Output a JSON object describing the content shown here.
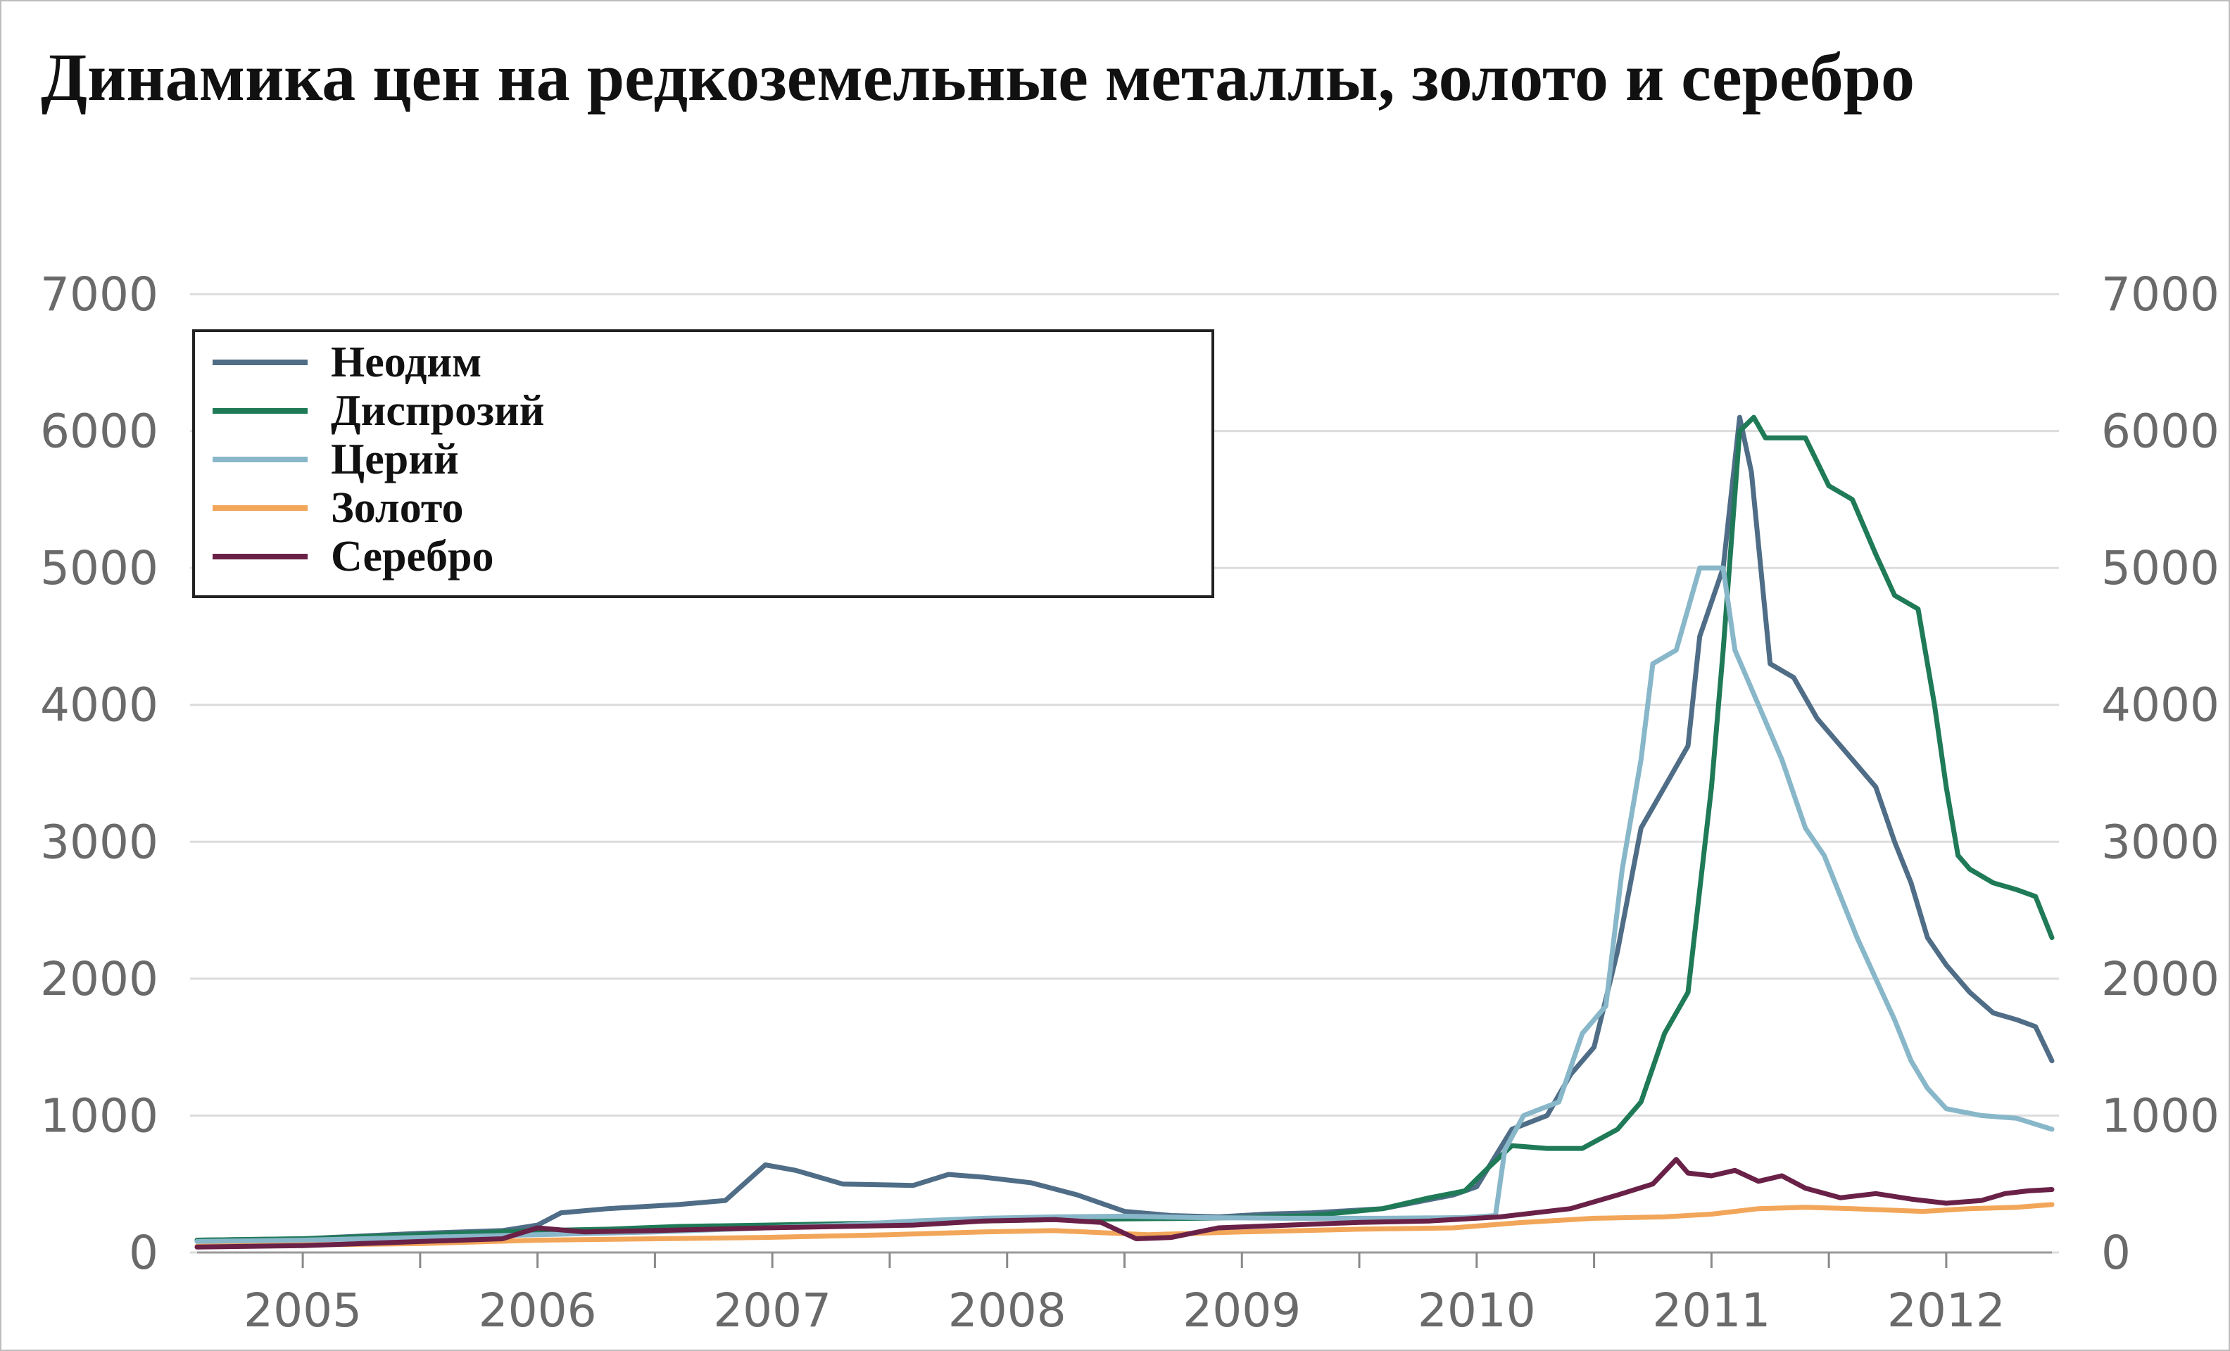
{
  "chart_data": {
    "type": "line",
    "title": "Динамика цен на редкоземельные металлы, золото и серебро",
    "xlabel": "",
    "ylabel": "",
    "xlim": [
      2004.55,
      2012.45
    ],
    "ylim": [
      0,
      7000
    ],
    "grid": true,
    "legend_position": "top-left",
    "x_ticks": [
      2005,
      2006,
      2007,
      2008,
      2009,
      2010,
      2011,
      2012
    ],
    "y_ticks": [
      0,
      1000,
      2000,
      3000,
      4000,
      5000,
      6000,
      7000
    ],
    "series": [
      {
        "name": "Неодим",
        "color": "#4f6d86",
        "points": [
          [
            2004.55,
            90
          ],
          [
            2005.0,
            100
          ],
          [
            2005.5,
            140
          ],
          [
            2005.85,
            160
          ],
          [
            2006.0,
            200
          ],
          [
            2006.1,
            290
          ],
          [
            2006.3,
            320
          ],
          [
            2006.6,
            350
          ],
          [
            2006.8,
            380
          ],
          [
            2006.97,
            640
          ],
          [
            2007.1,
            600
          ],
          [
            2007.3,
            500
          ],
          [
            2007.6,
            490
          ],
          [
            2007.75,
            570
          ],
          [
            2007.9,
            550
          ],
          [
            2008.1,
            510
          ],
          [
            2008.3,
            420
          ],
          [
            2008.5,
            300
          ],
          [
            2008.7,
            270
          ],
          [
            2008.9,
            260
          ],
          [
            2009.1,
            280
          ],
          [
            2009.3,
            290
          ],
          [
            2009.6,
            320
          ],
          [
            2009.9,
            420
          ],
          [
            2010.0,
            480
          ],
          [
            2010.1,
            760
          ],
          [
            2010.15,
            900
          ],
          [
            2010.3,
            1000
          ],
          [
            2010.4,
            1300
          ],
          [
            2010.5,
            1500
          ],
          [
            2010.6,
            2200
          ],
          [
            2010.7,
            3100
          ],
          [
            2010.8,
            3400
          ],
          [
            2010.9,
            3700
          ],
          [
            2010.95,
            4500
          ],
          [
            2011.05,
            5000
          ],
          [
            2011.12,
            6100
          ],
          [
            2011.17,
            5700
          ],
          [
            2011.25,
            4300
          ],
          [
            2011.35,
            4200
          ],
          [
            2011.45,
            3900
          ],
          [
            2011.6,
            3600
          ],
          [
            2011.7,
            3400
          ],
          [
            2011.78,
            3000
          ],
          [
            2011.85,
            2700
          ],
          [
            2011.92,
            2300
          ],
          [
            2012.0,
            2100
          ],
          [
            2012.1,
            1900
          ],
          [
            2012.2,
            1750
          ],
          [
            2012.3,
            1700
          ],
          [
            2012.38,
            1650
          ],
          [
            2012.45,
            1400
          ]
        ]
      },
      {
        "name": "Диспрозий",
        "color": "#1f7a57",
        "points": [
          [
            2004.55,
            90
          ],
          [
            2005.0,
            100
          ],
          [
            2005.5,
            130
          ],
          [
            2005.85,
            150
          ],
          [
            2006.0,
            160
          ],
          [
            2006.3,
            170
          ],
          [
            2006.6,
            190
          ],
          [
            2006.97,
            200
          ],
          [
            2007.3,
            210
          ],
          [
            2007.6,
            220
          ],
          [
            2007.9,
            230
          ],
          [
            2008.2,
            240
          ],
          [
            2008.5,
            245
          ],
          [
            2008.8,
            250
          ],
          [
            2009.0,
            255
          ],
          [
            2009.3,
            270
          ],
          [
            2009.6,
            320
          ],
          [
            2009.8,
            400
          ],
          [
            2009.95,
            450
          ],
          [
            2010.05,
            620
          ],
          [
            2010.15,
            780
          ],
          [
            2010.3,
            760
          ],
          [
            2010.45,
            760
          ],
          [
            2010.6,
            900
          ],
          [
            2010.7,
            1100
          ],
          [
            2010.8,
            1600
          ],
          [
            2010.9,
            1900
          ],
          [
            2011.0,
            3400
          ],
          [
            2011.05,
            4400
          ],
          [
            2011.12,
            6000
          ],
          [
            2011.18,
            6100
          ],
          [
            2011.23,
            5950
          ],
          [
            2011.4,
            5950
          ],
          [
            2011.5,
            5600
          ],
          [
            2011.6,
            5500
          ],
          [
            2011.7,
            5100
          ],
          [
            2011.78,
            4800
          ],
          [
            2011.88,
            4700
          ],
          [
            2011.95,
            4000
          ],
          [
            2012.0,
            3400
          ],
          [
            2012.05,
            2900
          ],
          [
            2012.1,
            2800
          ],
          [
            2012.2,
            2700
          ],
          [
            2012.3,
            2650
          ],
          [
            2012.38,
            2600
          ],
          [
            2012.45,
            2300
          ]
        ]
      },
      {
        "name": "Церий",
        "color": "#88b7c9",
        "points": [
          [
            2004.55,
            80
          ],
          [
            2005.0,
            90
          ],
          [
            2005.5,
            110
          ],
          [
            2006.0,
            130
          ],
          [
            2006.5,
            150
          ],
          [
            2006.97,
            180
          ],
          [
            2007.3,
            200
          ],
          [
            2007.6,
            230
          ],
          [
            2007.9,
            250
          ],
          [
            2008.2,
            260
          ],
          [
            2008.5,
            265
          ],
          [
            2008.8,
            255
          ],
          [
            2009.2,
            250
          ],
          [
            2009.6,
            250
          ],
          [
            2009.95,
            255
          ],
          [
            2010.08,
            270
          ],
          [
            2010.12,
            750
          ],
          [
            2010.2,
            1000
          ],
          [
            2010.35,
            1100
          ],
          [
            2010.45,
            1600
          ],
          [
            2010.55,
            1800
          ],
          [
            2010.62,
            2800
          ],
          [
            2010.7,
            3600
          ],
          [
            2010.75,
            4300
          ],
          [
            2010.85,
            4400
          ],
          [
            2010.95,
            5000
          ],
          [
            2011.05,
            5000
          ],
          [
            2011.1,
            4400
          ],
          [
            2011.2,
            4000
          ],
          [
            2011.3,
            3600
          ],
          [
            2011.4,
            3100
          ],
          [
            2011.48,
            2900
          ],
          [
            2011.55,
            2600
          ],
          [
            2011.62,
            2300
          ],
          [
            2011.7,
            2000
          ],
          [
            2011.78,
            1700
          ],
          [
            2011.85,
            1400
          ],
          [
            2011.92,
            1200
          ],
          [
            2012.0,
            1050
          ],
          [
            2012.15,
            1000
          ],
          [
            2012.3,
            980
          ],
          [
            2012.45,
            900
          ]
        ]
      },
      {
        "name": "Золото",
        "color": "#f2a65a",
        "points": [
          [
            2004.55,
            45
          ],
          [
            2005.0,
            55
          ],
          [
            2005.5,
            65
          ],
          [
            2006.0,
            90
          ],
          [
            2006.5,
            100
          ],
          [
            2006.97,
            110
          ],
          [
            2007.5,
            130
          ],
          [
            2007.9,
            150
          ],
          [
            2008.2,
            160
          ],
          [
            2008.6,
            130
          ],
          [
            2008.8,
            140
          ],
          [
            2009.0,
            150
          ],
          [
            2009.5,
            170
          ],
          [
            2009.9,
            180
          ],
          [
            2010.2,
            220
          ],
          [
            2010.5,
            250
          ],
          [
            2010.8,
            260
          ],
          [
            2011.0,
            280
          ],
          [
            2011.2,
            320
          ],
          [
            2011.4,
            330
          ],
          [
            2011.6,
            320
          ],
          [
            2011.9,
            300
          ],
          [
            2012.1,
            320
          ],
          [
            2012.3,
            330
          ],
          [
            2012.45,
            350
          ]
        ]
      },
      {
        "name": "Серебро",
        "color": "#6a2147",
        "points": [
          [
            2004.55,
            40
          ],
          [
            2005.0,
            50
          ],
          [
            2005.5,
            80
          ],
          [
            2005.85,
            100
          ],
          [
            2006.0,
            180
          ],
          [
            2006.2,
            150
          ],
          [
            2006.5,
            160
          ],
          [
            2006.97,
            180
          ],
          [
            2007.3,
            190
          ],
          [
            2007.6,
            200
          ],
          [
            2007.9,
            230
          ],
          [
            2008.2,
            240
          ],
          [
            2008.4,
            220
          ],
          [
            2008.55,
            100
          ],
          [
            2008.7,
            110
          ],
          [
            2008.9,
            180
          ],
          [
            2009.2,
            200
          ],
          [
            2009.5,
            220
          ],
          [
            2009.8,
            230
          ],
          [
            2010.1,
            260
          ],
          [
            2010.4,
            320
          ],
          [
            2010.6,
            420
          ],
          [
            2010.75,
            500
          ],
          [
            2010.85,
            680
          ],
          [
            2010.9,
            580
          ],
          [
            2011.0,
            560
          ],
          [
            2011.1,
            600
          ],
          [
            2011.2,
            520
          ],
          [
            2011.3,
            560
          ],
          [
            2011.4,
            470
          ],
          [
            2011.55,
            400
          ],
          [
            2011.7,
            430
          ],
          [
            2011.85,
            390
          ],
          [
            2012.0,
            360
          ],
          [
            2012.15,
            380
          ],
          [
            2012.25,
            430
          ],
          [
            2012.35,
            450
          ],
          [
            2012.45,
            460
          ]
        ]
      }
    ]
  }
}
